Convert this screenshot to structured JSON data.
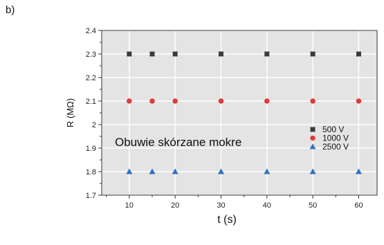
{
  "panel_label": "b)",
  "chart_data": {
    "type": "scatter",
    "xlabel": "t (s)",
    "ylabel": "R (MΩ)",
    "xlim": [
      4,
      64
    ],
    "ylim": [
      1.7,
      2.4
    ],
    "x_ticks": [
      10,
      20,
      30,
      40,
      50,
      60
    ],
    "y_ticks": [
      1.7,
      1.8,
      1.9,
      2,
      2.1,
      2.2,
      2.3,
      2.4
    ],
    "y_tick_labels": [
      "1.7",
      "1.8",
      "1.9",
      "2",
      "2.1",
      "2.2",
      "2.3",
      "2.4"
    ],
    "x": [
      10,
      15,
      20,
      30,
      40,
      50,
      60
    ],
    "series": [
      {
        "name": "500 V",
        "marker": "square",
        "color": "#3a3a3a",
        "values": [
          2.3,
          2.3,
          2.3,
          2.3,
          2.3,
          2.3,
          2.3
        ]
      },
      {
        "name": "1000 V",
        "marker": "circle",
        "color": "#e03a3a",
        "values": [
          2.1,
          2.1,
          2.1,
          2.1,
          2.1,
          2.1,
          2.1
        ]
      },
      {
        "name": "2500 V",
        "marker": "triangle",
        "color": "#2f6fc4",
        "values": [
          1.8,
          1.8,
          1.8,
          1.8,
          1.8,
          1.8,
          1.8
        ]
      }
    ],
    "annotation": "Obuwie skórzane mokre",
    "legend_position": "right"
  }
}
